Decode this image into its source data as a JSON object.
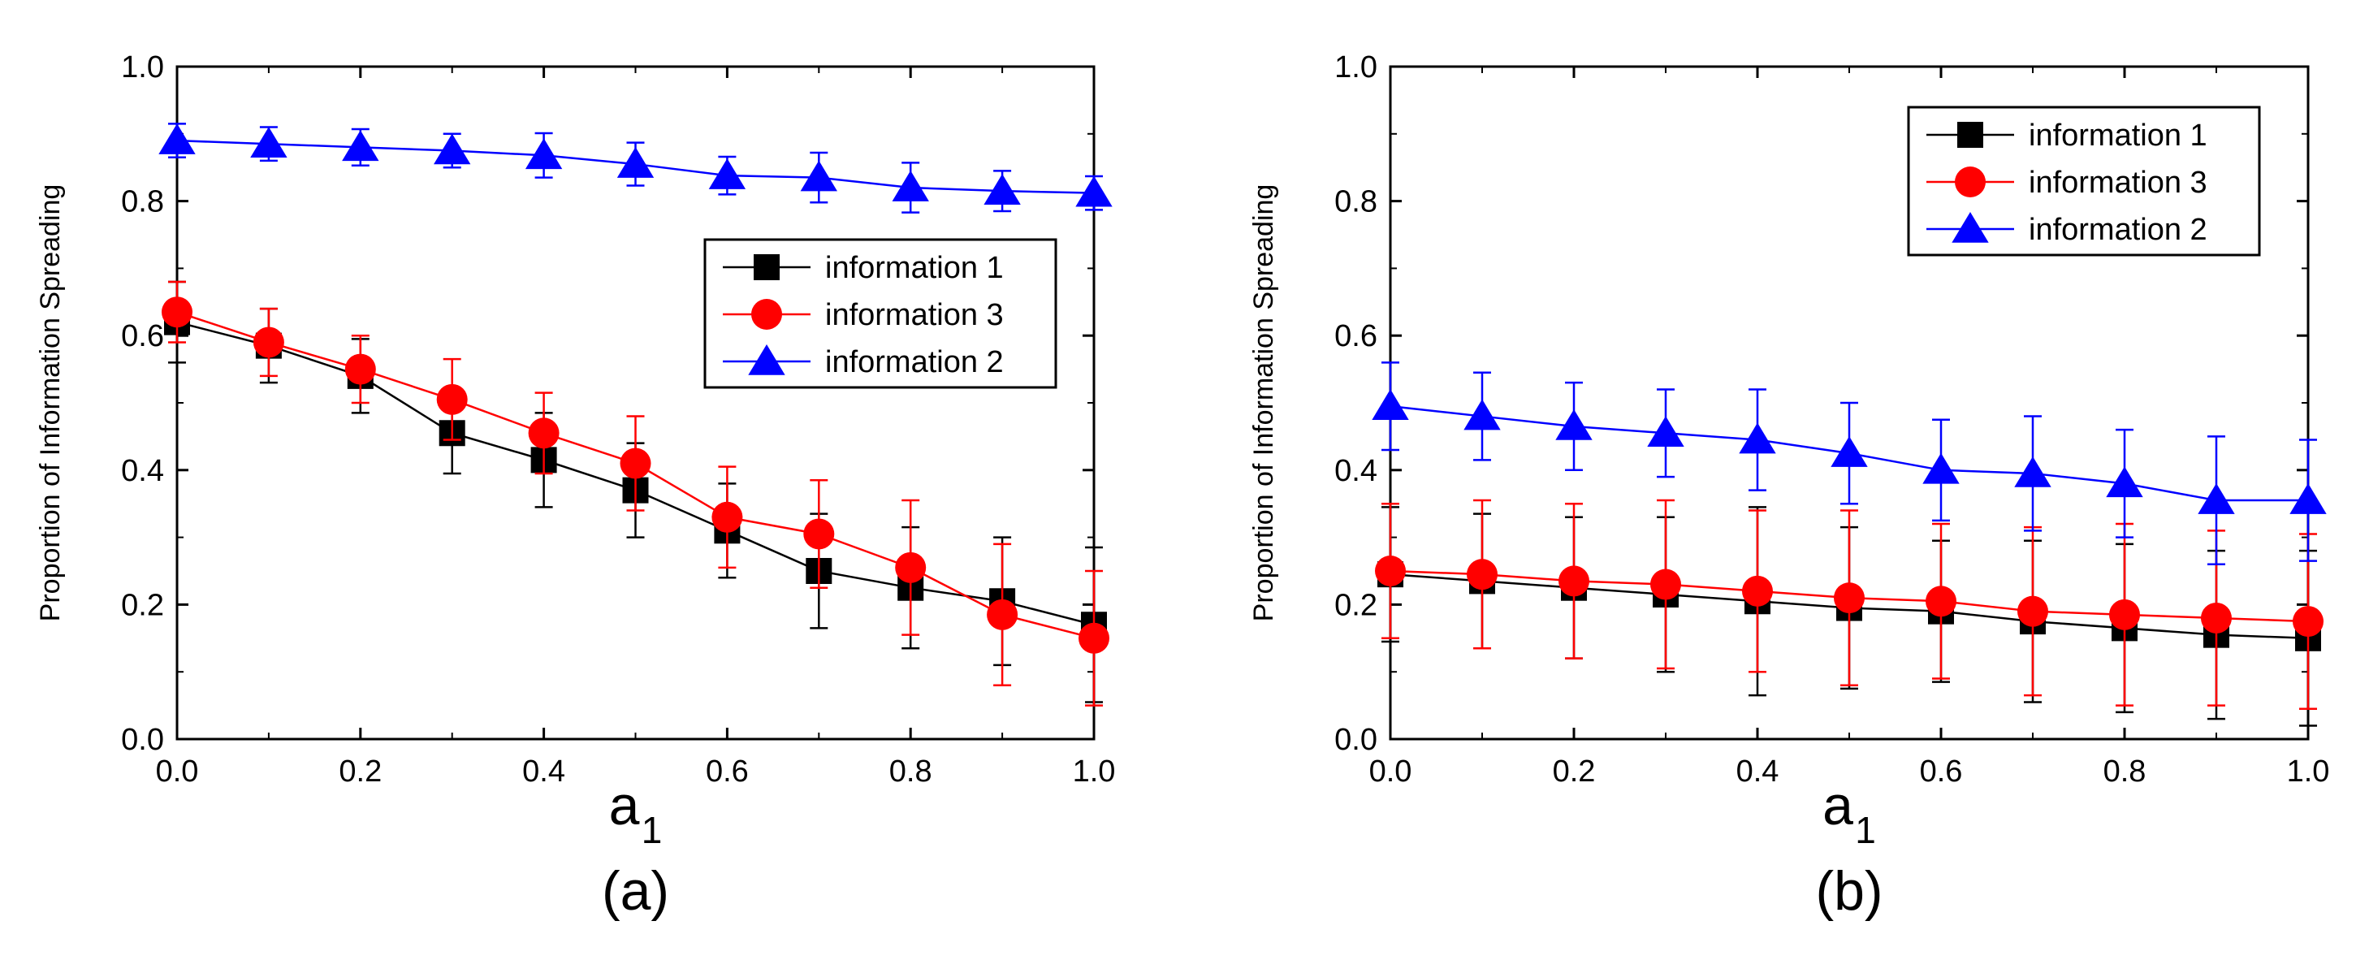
{
  "figure": {
    "panels": [
      "(a)",
      "(b)"
    ]
  },
  "colors": {
    "information_1": "#000000",
    "information_3": "#ff0000",
    "information_2": "#0000ff"
  },
  "chart_data": [
    {
      "type": "line",
      "panel_label": "(a)",
      "ylabel": "Proportion of Information Spreading",
      "xlabel": "a",
      "xlabel_subscript": "1",
      "xlim": [
        0.0,
        1.0
      ],
      "ylim": [
        0.0,
        1.0
      ],
      "xticks": [
        "0.0",
        "0.2",
        "0.4",
        "0.6",
        "0.8",
        "1.0"
      ],
      "yticks": [
        "0.0",
        "0.2",
        "0.4",
        "0.6",
        "0.8",
        "1.0"
      ],
      "legend_position": "center-right",
      "x": [
        0.0,
        0.1,
        0.2,
        0.3,
        0.4,
        0.5,
        0.6,
        0.7,
        0.8,
        0.9,
        1.0
      ],
      "series": [
        {
          "name": "information 1",
          "marker": "square",
          "color": "#000000",
          "values": [
            0.62,
            0.585,
            0.54,
            0.455,
            0.415,
            0.37,
            0.31,
            0.25,
            0.225,
            0.205,
            0.17
          ],
          "errors": [
            0.06,
            0.055,
            0.055,
            0.06,
            0.07,
            0.07,
            0.07,
            0.085,
            0.09,
            0.095,
            0.115
          ]
        },
        {
          "name": "information 3",
          "marker": "circle",
          "color": "#ff0000",
          "values": [
            0.635,
            0.59,
            0.55,
            0.505,
            0.455,
            0.41,
            0.33,
            0.305,
            0.255,
            0.185,
            0.15
          ],
          "errors": [
            0.045,
            0.05,
            0.05,
            0.06,
            0.06,
            0.07,
            0.075,
            0.08,
            0.1,
            0.105,
            0.1
          ]
        },
        {
          "name": "information 2",
          "marker": "triangle",
          "color": "#0000ff",
          "values": [
            0.89,
            0.885,
            0.88,
            0.875,
            0.868,
            0.855,
            0.838,
            0.835,
            0.82,
            0.815,
            0.812
          ],
          "errors": [
            0.025,
            0.025,
            0.027,
            0.025,
            0.033,
            0.032,
            0.028,
            0.037,
            0.037,
            0.03,
            0.025
          ]
        }
      ]
    },
    {
      "type": "line",
      "panel_label": "(b)",
      "ylabel": "Proportion of Information Spreading",
      "xlabel": "a",
      "xlabel_subscript": "1",
      "xlim": [
        0.0,
        1.0
      ],
      "ylim": [
        0.0,
        1.0
      ],
      "xticks": [
        "0.0",
        "0.2",
        "0.4",
        "0.6",
        "0.8",
        "1.0"
      ],
      "yticks": [
        "0.0",
        "0.2",
        "0.4",
        "0.6",
        "0.8",
        "1.0"
      ],
      "legend_position": "top-right",
      "x": [
        0.0,
        0.1,
        0.2,
        0.3,
        0.4,
        0.5,
        0.6,
        0.7,
        0.8,
        0.9,
        1.0
      ],
      "series": [
        {
          "name": "information 1",
          "marker": "square",
          "color": "#000000",
          "values": [
            0.245,
            0.235,
            0.225,
            0.215,
            0.205,
            0.195,
            0.19,
            0.175,
            0.165,
            0.155,
            0.15
          ],
          "errors": [
            0.1,
            0.1,
            0.105,
            0.115,
            0.14,
            0.12,
            0.105,
            0.12,
            0.125,
            0.125,
            0.13
          ]
        },
        {
          "name": "information 3",
          "marker": "circle",
          "color": "#ff0000",
          "values": [
            0.25,
            0.245,
            0.235,
            0.23,
            0.22,
            0.21,
            0.205,
            0.19,
            0.185,
            0.18,
            0.175
          ],
          "errors": [
            0.1,
            0.11,
            0.115,
            0.125,
            0.12,
            0.13,
            0.115,
            0.125,
            0.135,
            0.13,
            0.13
          ]
        },
        {
          "name": "information 2",
          "marker": "triangle",
          "color": "#0000ff",
          "values": [
            0.495,
            0.48,
            0.465,
            0.455,
            0.445,
            0.425,
            0.4,
            0.395,
            0.38,
            0.355,
            0.355
          ],
          "errors": [
            0.065,
            0.065,
            0.065,
            0.065,
            0.075,
            0.075,
            0.075,
            0.085,
            0.08,
            0.095,
            0.09
          ]
        }
      ]
    }
  ]
}
